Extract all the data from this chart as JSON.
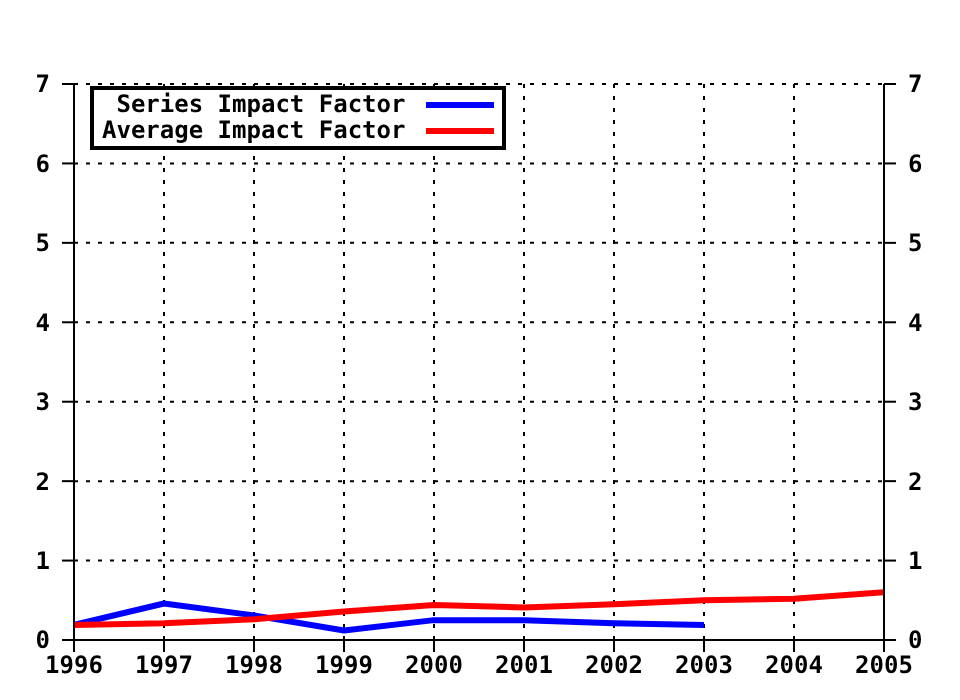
{
  "chart_data": {
    "type": "line",
    "x": [
      1996,
      1997,
      1998,
      1999,
      2000,
      2001,
      2002,
      2003,
      2004,
      2005
    ],
    "series": [
      {
        "name": "Series Impact Factor",
        "color": "#0000ff",
        "values": [
          0.19,
          0.46,
          0.31,
          0.12,
          0.25,
          0.25,
          0.21,
          0.19,
          null,
          null
        ]
      },
      {
        "name": "Average Impact Factor",
        "color": "#ff0000",
        "values": [
          0.19,
          0.21,
          0.26,
          0.36,
          0.44,
          0.41,
          0.45,
          0.5,
          0.52,
          0.6
        ]
      }
    ],
    "xlim": [
      1996,
      2005
    ],
    "xticks": [
      1996,
      1997,
      1998,
      1999,
      2000,
      2001,
      2002,
      2003,
      2004,
      2005
    ],
    "ylim": [
      0,
      7
    ],
    "yticks": [
      0,
      1,
      2,
      3,
      4,
      5,
      6,
      7
    ],
    "y2lim": [
      0,
      7
    ],
    "y2ticks": [
      0,
      1,
      2,
      3,
      4,
      5,
      6,
      7
    ],
    "grid": true,
    "legend": "top left",
    "marker": "none",
    "line_style": "solid"
  }
}
